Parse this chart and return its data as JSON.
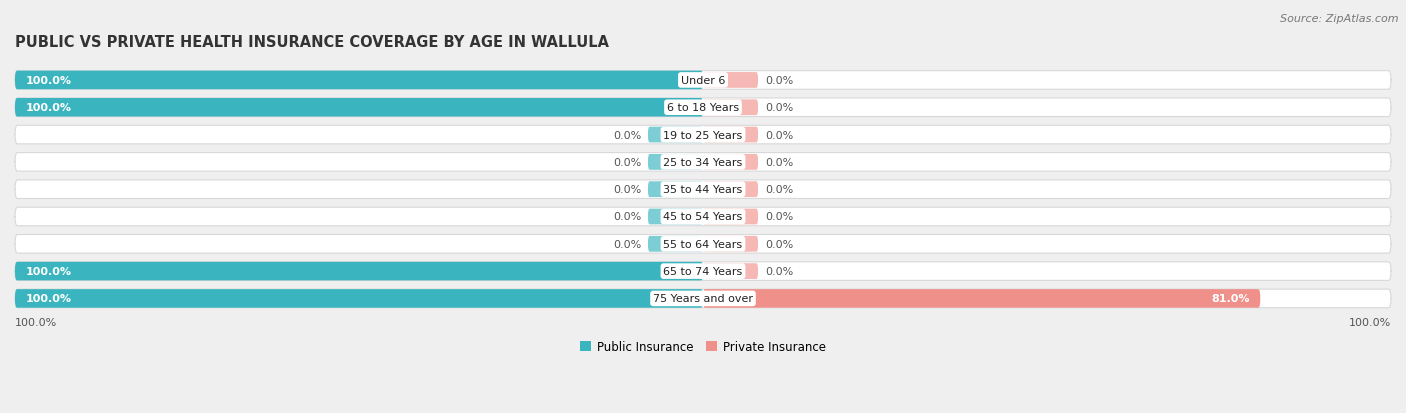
{
  "title": "PUBLIC VS PRIVATE HEALTH INSURANCE COVERAGE BY AGE IN WALLULA",
  "source": "Source: ZipAtlas.com",
  "categories": [
    "Under 6",
    "6 to 18 Years",
    "19 to 25 Years",
    "25 to 34 Years",
    "35 to 44 Years",
    "45 to 54 Years",
    "55 to 64 Years",
    "65 to 74 Years",
    "75 Years and over"
  ],
  "public_values": [
    100.0,
    100.0,
    0.0,
    0.0,
    0.0,
    0.0,
    0.0,
    100.0,
    100.0
  ],
  "private_values": [
    0.0,
    0.0,
    0.0,
    0.0,
    0.0,
    0.0,
    0.0,
    0.0,
    81.0
  ],
  "public_color": "#3ab5bf",
  "private_color": "#f0908a",
  "public_stub_color": "#7dcdd4",
  "private_stub_color": "#f5b8b4",
  "bg_color": "#efefef",
  "bar_bg_color": "#ffffff",
  "title_fontsize": 10.5,
  "source_fontsize": 8,
  "label_fontsize": 8,
  "category_fontsize": 8,
  "legend_fontsize": 8.5,
  "axis_label_fontsize": 8,
  "stub_size": 8.0,
  "max_value": 100.0,
  "left_axis_label": "100.0%",
  "right_axis_label": "100.0%"
}
